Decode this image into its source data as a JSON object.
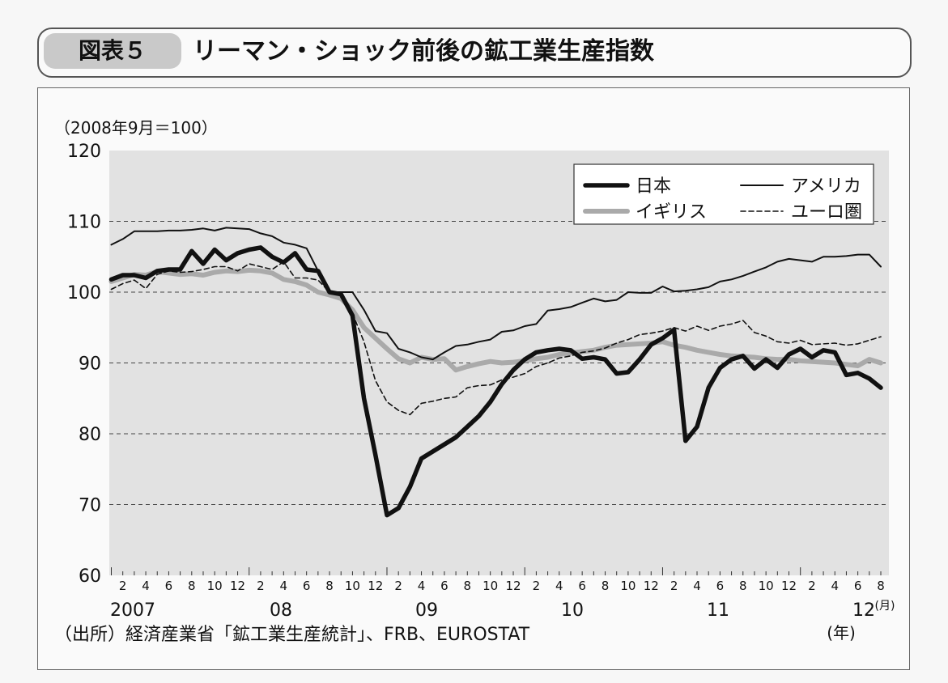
{
  "figure": {
    "label": "図表５",
    "title": "リーマン・ショック前後の鉱工業生産指数"
  },
  "source_note": "（出所）経済産業省「鉱工業生産統計」、FRB、EUROSTAT",
  "chart_data": {
    "type": "line",
    "unit_label": "（2008年9月＝100）",
    "ylim": [
      60,
      120
    ],
    "yticks": [
      "60",
      "70",
      "80",
      "90",
      "100",
      "110",
      "120"
    ],
    "x_month_ticks": [
      "2",
      "4",
      "6",
      "8",
      "10",
      "12",
      "2",
      "4",
      "6",
      "8",
      "10",
      "12",
      "2",
      "4",
      "6",
      "8",
      "10",
      "12",
      "2",
      "4",
      "6",
      "8",
      "10",
      "12",
      "2",
      "4",
      "6",
      "8",
      "10",
      "12",
      "2",
      "4",
      "6",
      "8"
    ],
    "x_year_labels": [
      "2007",
      "08",
      "09",
      "10",
      "11",
      "12"
    ],
    "x_month_unit": "(月)",
    "x_year_unit": "(年)",
    "x_start": "2007-01",
    "grid": "dashed",
    "legend_position": "top-right",
    "series": [
      {
        "name": "日本",
        "style": "thick-black",
        "color": "#111111",
        "values": [
          101.8,
          102.4,
          102.4,
          102.0,
          103.0,
          103.2,
          103.2,
          105.8,
          104.0,
          106.0,
          104.5,
          105.5,
          106.0,
          106.3,
          105.0,
          104.2,
          105.5,
          103.2,
          103.0,
          100.0,
          99.7,
          96.7,
          85.0,
          77.0,
          68.5,
          69.5,
          72.5,
          76.5,
          77.5,
          78.5,
          79.5,
          81.0,
          82.5,
          84.5,
          87.0,
          89.0,
          90.5,
          91.5,
          91.8,
          92.0,
          91.8,
          90.6,
          90.8,
          90.5,
          88.5,
          88.7,
          90.5,
          92.6,
          93.5,
          94.7,
          79.0,
          81.0,
          86.5,
          89.3,
          90.5,
          91.0,
          89.2,
          90.5,
          89.3,
          91.2,
          92.0,
          90.8,
          91.8,
          91.5,
          88.3,
          88.6,
          87.8,
          86.5
        ]
      },
      {
        "name": "アメリカ",
        "style": "thin-black",
        "color": "#111111",
        "values": [
          106.7,
          107.5,
          108.6,
          108.6,
          108.6,
          108.7,
          108.7,
          108.8,
          109.0,
          108.7,
          109.1,
          109.0,
          108.9,
          108.3,
          107.9,
          107.0,
          106.7,
          106.2,
          103.0,
          100.0,
          100.0,
          100.0,
          97.5,
          94.5,
          94.2,
          92.0,
          91.5,
          90.8,
          90.5,
          91.5,
          92.4,
          92.6,
          93.0,
          93.3,
          94.4,
          94.6,
          95.2,
          95.5,
          97.4,
          97.6,
          97.9,
          98.5,
          99.1,
          98.7,
          98.9,
          100.0,
          99.9,
          99.9,
          100.8,
          100.1,
          100.2,
          100.4,
          100.7,
          101.5,
          101.8,
          102.3,
          102.9,
          103.5,
          104.3,
          104.7,
          104.5,
          104.3,
          105.0,
          105.0,
          105.1,
          105.3,
          105.3,
          103.6
        ]
      },
      {
        "name": "イギリス",
        "style": "thick-gray",
        "color": "#aaaaaa",
        "values": [
          101.5,
          102.0,
          102.5,
          102.4,
          102.9,
          102.7,
          102.5,
          102.6,
          102.4,
          102.8,
          103.0,
          102.9,
          103.1,
          103.0,
          102.7,
          101.8,
          101.5,
          101.0,
          100.0,
          99.6,
          99.1,
          97.5,
          95.0,
          93.5,
          92.0,
          90.6,
          90.0,
          90.8,
          90.5,
          90.6,
          89.0,
          89.5,
          89.9,
          90.2,
          90.0,
          90.1,
          90.3,
          90.6,
          90.8,
          91.2,
          91.4,
          91.6,
          91.8,
          92.2,
          92.5,
          92.6,
          92.7,
          92.8,
          93.0,
          92.5,
          92.2,
          91.8,
          91.5,
          91.2,
          91.0,
          90.9,
          90.8,
          90.6,
          90.5,
          90.5,
          90.3,
          90.2,
          90.1,
          90.0,
          89.8,
          89.6,
          90.5,
          90.0
        ]
      },
      {
        "name": "ユーロ圏",
        "style": "dashed-black",
        "color": "#111111",
        "values": [
          100.4,
          101.2,
          101.7,
          100.5,
          102.5,
          103.0,
          102.8,
          102.9,
          103.2,
          103.6,
          103.6,
          103.0,
          104.0,
          103.6,
          103.2,
          104.3,
          102.0,
          102.0,
          101.7,
          100.0,
          99.5,
          97.0,
          93.0,
          87.5,
          84.5,
          83.3,
          82.7,
          84.3,
          84.6,
          85.0,
          85.2,
          86.5,
          86.8,
          86.9,
          87.6,
          88.0,
          88.5,
          89.5,
          90.0,
          90.7,
          91.0,
          91.5,
          91.7,
          92.1,
          92.8,
          93.3,
          94.0,
          94.2,
          94.5,
          95.0,
          94.5,
          95.2,
          94.6,
          95.2,
          95.5,
          96.0,
          94.3,
          93.8,
          93.0,
          92.8,
          93.2,
          92.6,
          92.7,
          92.8,
          92.5,
          92.7,
          93.2,
          93.7
        ]
      }
    ]
  }
}
